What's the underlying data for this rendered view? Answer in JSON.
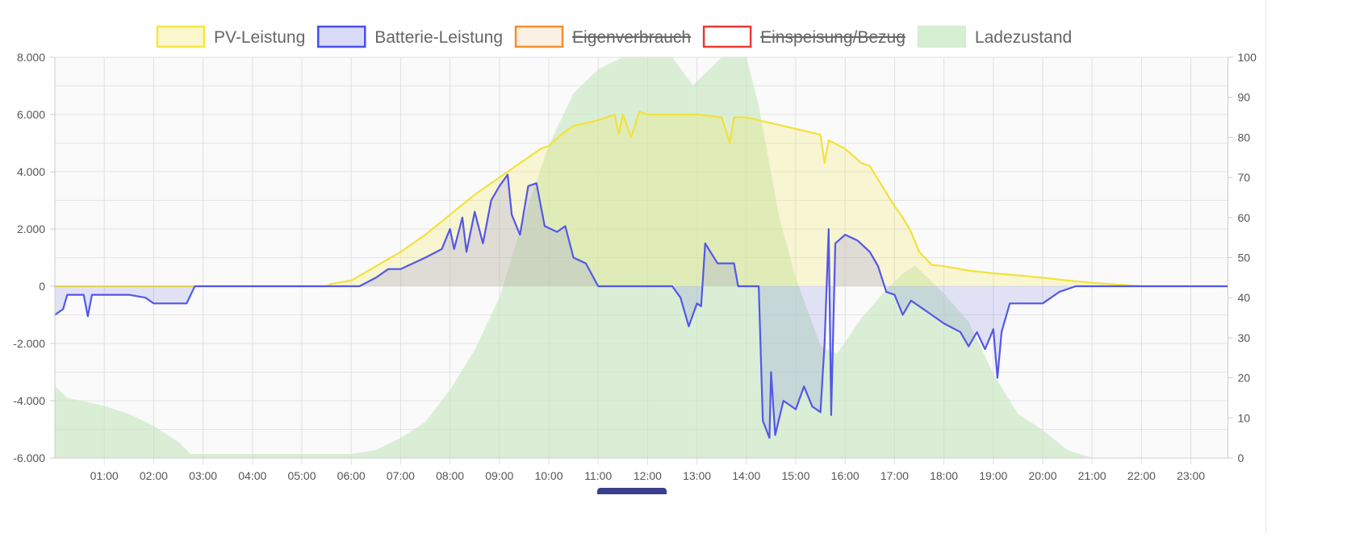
{
  "chart_data": {
    "type": "line",
    "title": "",
    "x_axis": {
      "ticks": [
        "01:00",
        "02:00",
        "03:00",
        "04:00",
        "05:00",
        "06:00",
        "07:00",
        "08:00",
        "09:00",
        "10:00",
        "11:00",
        "12:00",
        "13:00",
        "14:00",
        "15:00",
        "16:00",
        "17:00",
        "18:00",
        "19:00",
        "20:00",
        "21:00",
        "22:00",
        "23:00"
      ]
    },
    "y_left": {
      "range": [
        -6000,
        8000
      ],
      "ticks": [
        "8.000",
        "6.000",
        "4.000",
        "2.000",
        "0",
        "-2.000",
        "-4.000",
        "-6.000"
      ],
      "tick_values": [
        8000,
        6000,
        4000,
        2000,
        0,
        -2000,
        -4000,
        -6000
      ]
    },
    "y_right": {
      "range": [
        0,
        100
      ],
      "ticks": [
        "100",
        "90",
        "80",
        "70",
        "60",
        "50",
        "40",
        "30",
        "20",
        "10",
        "0"
      ],
      "tick_values": [
        100,
        90,
        80,
        70,
        60,
        50,
        40,
        30,
        20,
        10,
        0
      ]
    },
    "grid": true,
    "legend_position": "top",
    "legend": [
      {
        "label": "PV-Leistung",
        "stroke": "#f5e642",
        "fill": "#fbf6cc",
        "hidden": false
      },
      {
        "label": "Batterie-Leistung",
        "stroke": "#4a4ef0",
        "fill": "#d9daf8",
        "hidden": false
      },
      {
        "label": "Eigenverbrauch",
        "stroke": "#f0902e",
        "fill": "#fcefe3",
        "hidden": true
      },
      {
        "label": "Einspeisung/Bezug",
        "stroke": "#ea3a32",
        "fill": "#ffffff",
        "hidden": true
      },
      {
        "label": "Ladezustand",
        "stroke": "#d6eed2",
        "fill": "#d6eed2",
        "hidden": false
      }
    ],
    "series": [
      {
        "name": "PV-Leistung",
        "axis": "left",
        "color": "#f2e23a",
        "fill": "rgba(245,232,90,0.25)",
        "points": [
          [
            "00:00",
            0
          ],
          [
            "05:30",
            0
          ],
          [
            "05:35",
            80
          ],
          [
            "06:00",
            200
          ],
          [
            "06:30",
            700
          ],
          [
            "07:00",
            1200
          ],
          [
            "07:30",
            1800
          ],
          [
            "08:00",
            2500
          ],
          [
            "08:30",
            3200
          ],
          [
            "09:00",
            3800
          ],
          [
            "09:30",
            4400
          ],
          [
            "09:50",
            4800
          ],
          [
            "10:00",
            4900
          ],
          [
            "10:15",
            5300
          ],
          [
            "10:30",
            5600
          ],
          [
            "11:00",
            5800
          ],
          [
            "11:20",
            6000
          ],
          [
            "11:25",
            5300
          ],
          [
            "11:30",
            6000
          ],
          [
            "11:40",
            5200
          ],
          [
            "11:50",
            6100
          ],
          [
            "12:00",
            6000
          ],
          [
            "12:30",
            6000
          ],
          [
            "13:00",
            6000
          ],
          [
            "13:30",
            5900
          ],
          [
            "13:40",
            5000
          ],
          [
            "13:45",
            5900
          ],
          [
            "14:00",
            5900
          ],
          [
            "14:30",
            5700
          ],
          [
            "15:00",
            5500
          ],
          [
            "15:30",
            5300
          ],
          [
            "15:35",
            4300
          ],
          [
            "15:40",
            5100
          ],
          [
            "16:00",
            4800
          ],
          [
            "16:20",
            4300
          ],
          [
            "16:30",
            4200
          ],
          [
            "16:45",
            3500
          ],
          [
            "17:00",
            2800
          ],
          [
            "17:10",
            2400
          ],
          [
            "17:20",
            1900
          ],
          [
            "17:30",
            1200
          ],
          [
            "17:45",
            750
          ],
          [
            "18:00",
            700
          ],
          [
            "18:30",
            550
          ],
          [
            "19:00",
            450
          ],
          [
            "19:30",
            380
          ],
          [
            "20:00",
            300
          ],
          [
            "20:30",
            200
          ],
          [
            "21:00",
            120
          ],
          [
            "21:30",
            60
          ],
          [
            "22:00",
            0
          ],
          [
            "23:45",
            0
          ]
        ]
      },
      {
        "name": "Batterie-Leistung",
        "axis": "left",
        "color": "#5457e8",
        "fill": "rgba(110,110,230,0.18)",
        "points": [
          [
            "00:00",
            -1000
          ],
          [
            "00:10",
            -800
          ],
          [
            "00:15",
            -300
          ],
          [
            "00:35",
            -300
          ],
          [
            "00:40",
            -1050
          ],
          [
            "00:45",
            -300
          ],
          [
            "01:30",
            -300
          ],
          [
            "01:50",
            -400
          ],
          [
            "02:00",
            -600
          ],
          [
            "02:40",
            -600
          ],
          [
            "02:50",
            0
          ],
          [
            "05:30",
            0
          ],
          [
            "06:10",
            0
          ],
          [
            "06:30",
            300
          ],
          [
            "06:45",
            600
          ],
          [
            "07:00",
            600
          ],
          [
            "07:30",
            1000
          ],
          [
            "07:50",
            1300
          ],
          [
            "08:00",
            2000
          ],
          [
            "08:05",
            1300
          ],
          [
            "08:15",
            2400
          ],
          [
            "08:20",
            1200
          ],
          [
            "08:30",
            2600
          ],
          [
            "08:40",
            1500
          ],
          [
            "08:50",
            3000
          ],
          [
            "09:00",
            3500
          ],
          [
            "09:10",
            3900
          ],
          [
            "09:15",
            2500
          ],
          [
            "09:25",
            1800
          ],
          [
            "09:35",
            3500
          ],
          [
            "09:45",
            3600
          ],
          [
            "09:55",
            2100
          ],
          [
            "10:10",
            1900
          ],
          [
            "10:20",
            2100
          ],
          [
            "10:30",
            1000
          ],
          [
            "10:45",
            800
          ],
          [
            "11:00",
            0
          ],
          [
            "12:30",
            0
          ],
          [
            "12:40",
            -400
          ],
          [
            "12:50",
            -1400
          ],
          [
            "13:00",
            -600
          ],
          [
            "13:05",
            -700
          ],
          [
            "13:10",
            1500
          ],
          [
            "13:25",
            800
          ],
          [
            "13:45",
            800
          ],
          [
            "13:50",
            0
          ],
          [
            "14:15",
            0
          ],
          [
            "14:20",
            -4700
          ],
          [
            "14:28",
            -5300
          ],
          [
            "14:30",
            -3000
          ],
          [
            "14:35",
            -5200
          ],
          [
            "14:45",
            -4000
          ],
          [
            "15:00",
            -4300
          ],
          [
            "15:10",
            -3500
          ],
          [
            "15:20",
            -4200
          ],
          [
            "15:30",
            -4400
          ],
          [
            "15:35",
            -2000
          ],
          [
            "15:40",
            2000
          ],
          [
            "15:43",
            -4500
          ],
          [
            "15:48",
            1500
          ],
          [
            "16:00",
            1800
          ],
          [
            "16:15",
            1600
          ],
          [
            "16:30",
            1200
          ],
          [
            "16:40",
            700
          ],
          [
            "16:50",
            -200
          ],
          [
            "17:00",
            -300
          ],
          [
            "17:10",
            -1000
          ],
          [
            "17:20",
            -500
          ],
          [
            "17:40",
            -900
          ],
          [
            "18:00",
            -1300
          ],
          [
            "18:20",
            -1600
          ],
          [
            "18:30",
            -2100
          ],
          [
            "18:40",
            -1600
          ],
          [
            "18:50",
            -2200
          ],
          [
            "19:00",
            -1500
          ],
          [
            "19:05",
            -3200
          ],
          [
            "19:10",
            -1600
          ],
          [
            "19:20",
            -600
          ],
          [
            "20:00",
            -600
          ],
          [
            "20:20",
            -200
          ],
          [
            "20:40",
            0
          ],
          [
            "23:45",
            0
          ]
        ]
      },
      {
        "name": "Ladezustand",
        "axis": "right",
        "color": "#d6eed2",
        "fill": "rgba(196,230,190,0.6)",
        "points": [
          [
            "00:00",
            18
          ],
          [
            "00:15",
            15
          ],
          [
            "01:00",
            13
          ],
          [
            "01:30",
            11
          ],
          [
            "02:00",
            8
          ],
          [
            "02:30",
            4
          ],
          [
            "02:45",
            1
          ],
          [
            "06:00",
            1
          ],
          [
            "06:30",
            2
          ],
          [
            "07:00",
            5
          ],
          [
            "07:30",
            9
          ],
          [
            "08:00",
            17
          ],
          [
            "08:30",
            27
          ],
          [
            "09:00",
            40
          ],
          [
            "09:30",
            60
          ],
          [
            "10:00",
            78
          ],
          [
            "10:30",
            91
          ],
          [
            "11:00",
            97
          ],
          [
            "11:30",
            100
          ],
          [
            "12:30",
            100
          ],
          [
            "12:55",
            93
          ],
          [
            "13:30",
            100
          ],
          [
            "14:00",
            100
          ],
          [
            "14:15",
            88
          ],
          [
            "14:40",
            60
          ],
          [
            "15:00",
            45
          ],
          [
            "15:30",
            28
          ],
          [
            "15:50",
            26
          ],
          [
            "16:20",
            35
          ],
          [
            "16:50",
            42
          ],
          [
            "17:10",
            46
          ],
          [
            "17:25",
            48
          ],
          [
            "17:40",
            45
          ],
          [
            "18:00",
            41
          ],
          [
            "18:30",
            34
          ],
          [
            "19:00",
            21
          ],
          [
            "19:30",
            11
          ],
          [
            "20:00",
            7
          ],
          [
            "20:30",
            2
          ],
          [
            "21:00",
            0
          ],
          [
            "23:45",
            0
          ]
        ]
      }
    ]
  }
}
